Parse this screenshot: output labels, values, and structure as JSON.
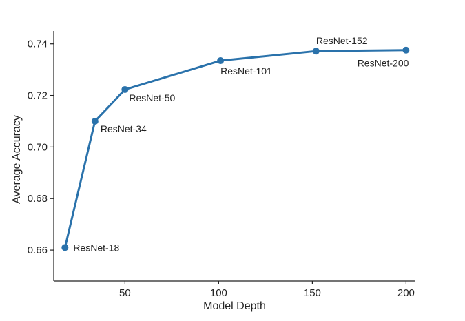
{
  "chart_data": {
    "type": "line",
    "title": "",
    "xlabel": "Model Depth",
    "ylabel": "Average Accuracy",
    "xlim": [
      12,
      205
    ],
    "ylim": [
      0.648,
      0.745
    ],
    "xticks": [
      50,
      100,
      150,
      200
    ],
    "yticks": [
      0.66,
      0.68,
      0.7,
      0.72,
      0.74
    ],
    "ytick_labels": [
      "0.66",
      "0.68",
      "0.70",
      "0.72",
      "0.74"
    ],
    "grid": false,
    "color": "#2a72ab",
    "series": [
      {
        "x": [
          18,
          34,
          50,
          101,
          152,
          200
        ],
        "y": [
          0.661,
          0.71,
          0.7223,
          0.7335,
          0.7372,
          0.7376
        ],
        "labels": [
          "ResNet-18",
          "ResNet-34",
          "ResNet-50",
          "ResNet-101",
          "ResNet-152",
          "ResNet-200"
        ]
      }
    ]
  }
}
